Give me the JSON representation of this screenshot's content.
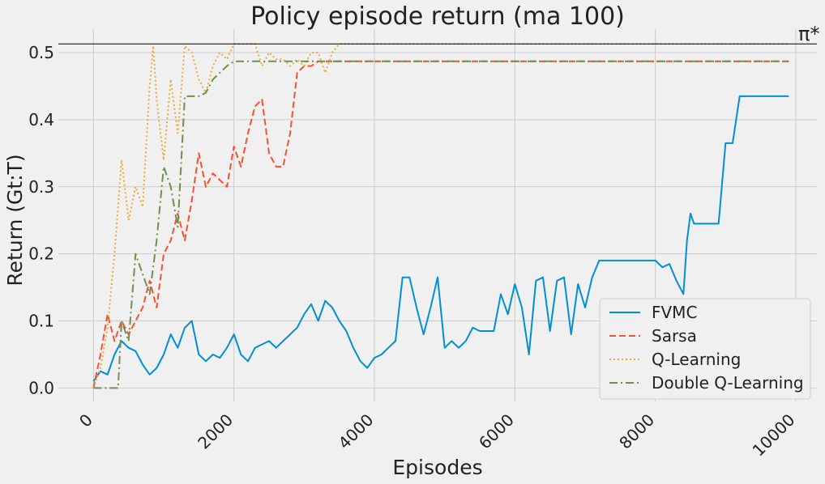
{
  "chart_data": {
    "type": "line",
    "title": "Policy episode return (ma 100)",
    "xlabel": "Episodes",
    "ylabel": "Return (Gt:T)",
    "xlim": [
      -500,
      10300
    ],
    "ylim": [
      -0.02,
      0.535
    ],
    "xticks": [
      0,
      2000,
      4000,
      6000,
      8000,
      10000
    ],
    "xtick_labels": [
      "0",
      "2000",
      "4000",
      "6000",
      "8000",
      "10000"
    ],
    "yticks": [
      0.0,
      0.1,
      0.2,
      0.3,
      0.4,
      0.5
    ],
    "ytick_labels": [
      "0.0",
      "0.1",
      "0.2",
      "0.3",
      "0.4",
      "0.5"
    ],
    "grid": true,
    "legend_position": "lower-right",
    "reference_line": {
      "label": "π*",
      "y": 0.513,
      "color": "#000000"
    },
    "series": [
      {
        "name": "FVMC",
        "color": "#008fd5",
        "dash": "solid",
        "x": [
          0,
          100,
          200,
          300,
          400,
          500,
          600,
          700,
          800,
          900,
          1000,
          1100,
          1200,
          1300,
          1400,
          1500,
          1600,
          1700,
          1800,
          1900,
          2000,
          2100,
          2200,
          2300,
          2400,
          2500,
          2600,
          2700,
          2800,
          2900,
          3000,
          3100,
          3200,
          3300,
          3400,
          3500,
          3600,
          3700,
          3800,
          3900,
          4000,
          4100,
          4200,
          4300,
          4400,
          4500,
          4600,
          4700,
          4800,
          4900,
          5000,
          5100,
          5200,
          5300,
          5400,
          5500,
          5600,
          5700,
          5800,
          5900,
          6000,
          6100,
          6200,
          6300,
          6400,
          6500,
          6600,
          6700,
          6800,
          6900,
          7000,
          7100,
          7200,
          7300,
          7400,
          7500,
          7600,
          7700,
          7800,
          7900,
          8000,
          8100,
          8200,
          8300,
          8400,
          8450,
          8500,
          8550,
          8600,
          8700,
          8800,
          8900,
          9000,
          9100,
          9200,
          9300,
          9400,
          9500,
          9600,
          9700,
          9800,
          9900
        ],
        "y": [
          0.01,
          0.025,
          0.02,
          0.05,
          0.07,
          0.06,
          0.055,
          0.035,
          0.02,
          0.03,
          0.05,
          0.08,
          0.06,
          0.09,
          0.1,
          0.05,
          0.04,
          0.05,
          0.045,
          0.06,
          0.08,
          0.05,
          0.04,
          0.06,
          0.065,
          0.07,
          0.06,
          0.07,
          0.08,
          0.09,
          0.11,
          0.125,
          0.1,
          0.13,
          0.12,
          0.1,
          0.085,
          0.06,
          0.04,
          0.03,
          0.045,
          0.05,
          0.06,
          0.07,
          0.165,
          0.165,
          0.12,
          0.08,
          0.12,
          0.165,
          0.06,
          0.07,
          0.06,
          0.07,
          0.09,
          0.085,
          0.085,
          0.085,
          0.14,
          0.11,
          0.155,
          0.12,
          0.05,
          0.16,
          0.165,
          0.085,
          0.16,
          0.165,
          0.08,
          0.155,
          0.12,
          0.165,
          0.19,
          0.19,
          0.19,
          0.19,
          0.19,
          0.19,
          0.19,
          0.19,
          0.19,
          0.18,
          0.185,
          0.16,
          0.14,
          0.22,
          0.26,
          0.245,
          0.245,
          0.245,
          0.245,
          0.245,
          0.365,
          0.365,
          0.435,
          0.435,
          0.435,
          0.435,
          0.435,
          0.435,
          0.435,
          0.435
        ]
      },
      {
        "name": "Sarsa",
        "color": "#fc4f30",
        "dash": "8,4",
        "x": [
          0,
          100,
          200,
          300,
          400,
          500,
          600,
          700,
          800,
          900,
          1000,
          1100,
          1200,
          1300,
          1400,
          1500,
          1600,
          1700,
          1800,
          1900,
          2000,
          2100,
          2200,
          2300,
          2400,
          2500,
          2600,
          2700,
          2800,
          2900,
          3000,
          3100,
          3200,
          3400,
          3600,
          3800,
          4000,
          5000,
          6000,
          7000,
          8000,
          9000,
          9900
        ],
        "y": [
          0.0,
          0.05,
          0.11,
          0.07,
          0.1,
          0.08,
          0.1,
          0.12,
          0.16,
          0.12,
          0.2,
          0.22,
          0.26,
          0.22,
          0.28,
          0.35,
          0.3,
          0.32,
          0.31,
          0.3,
          0.36,
          0.33,
          0.38,
          0.42,
          0.43,
          0.35,
          0.33,
          0.33,
          0.38,
          0.47,
          0.48,
          0.48,
          0.487,
          0.487,
          0.487,
          0.487,
          0.487,
          0.487,
          0.487,
          0.487,
          0.487,
          0.487,
          0.487
        ]
      },
      {
        "name": "Q-Learning",
        "color": "#e5ae38",
        "dash": "2,3",
        "x": [
          0,
          100,
          200,
          300,
          400,
          500,
          600,
          700,
          800,
          850,
          900,
          1000,
          1100,
          1200,
          1300,
          1400,
          1500,
          1600,
          1700,
          1800,
          1900,
          2000,
          2100,
          2200,
          2300,
          2400,
          2500,
          2600,
          2700,
          2800,
          2900,
          3000,
          3100,
          3200,
          3300,
          3400,
          3500,
          4000,
          5000,
          6000,
          7000,
          8000,
          9000,
          9900
        ],
        "y": [
          0.0,
          0.03,
          0.09,
          0.2,
          0.34,
          0.25,
          0.3,
          0.27,
          0.45,
          0.51,
          0.43,
          0.34,
          0.46,
          0.38,
          0.51,
          0.5,
          0.46,
          0.44,
          0.48,
          0.5,
          0.49,
          0.513,
          0.513,
          0.513,
          0.513,
          0.48,
          0.5,
          0.49,
          0.49,
          0.48,
          0.49,
          0.48,
          0.5,
          0.5,
          0.47,
          0.5,
          0.513,
          0.513,
          0.513,
          0.513,
          0.513,
          0.513,
          0.513,
          0.513
        ]
      },
      {
        "name": "Double Q-Learning",
        "color": "#6d904f",
        "dash": "10,4,2,4",
        "x": [
          0,
          100,
          200,
          300,
          350,
          400,
          500,
          600,
          700,
          800,
          900,
          1000,
          1100,
          1200,
          1300,
          1400,
          1500,
          1600,
          1700,
          1800,
          1900,
          2000,
          3000,
          4000,
          5000,
          6000,
          7000,
          8000,
          9000,
          9900
        ],
        "y": [
          0.0,
          0.0,
          0.0,
          0.0,
          0.0,
          0.1,
          0.07,
          0.2,
          0.17,
          0.14,
          0.22,
          0.33,
          0.3,
          0.24,
          0.435,
          0.435,
          0.435,
          0.44,
          0.46,
          0.47,
          0.48,
          0.487,
          0.487,
          0.487,
          0.487,
          0.487,
          0.487,
          0.487,
          0.487,
          0.487
        ]
      }
    ]
  }
}
